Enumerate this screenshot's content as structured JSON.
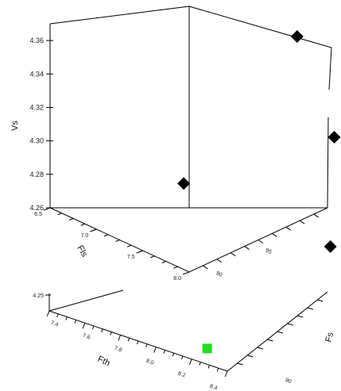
{
  "chart_data": [
    {
      "type": "scatter",
      "title": "",
      "xlabel": "Fls",
      "ylabel": "Vs",
      "zlabel": "",
      "xticks": [
        "6.5",
        "7.0",
        "7.5",
        "8.0"
      ],
      "yticks": [
        "4.26",
        "4.28",
        "4.30",
        "4.32",
        "4.34",
        "4.36"
      ],
      "zticks": [
        "90",
        "95"
      ],
      "xlim": [
        6.5,
        8.0
      ],
      "ylim": [
        4.26,
        4.37
      ],
      "zlim": [
        88,
        102
      ],
      "marker": "diamond",
      "color": "#000000",
      "points": [
        {
          "x": 6.6,
          "y": 4.365,
          "z": 100
        },
        {
          "x": 7.0,
          "y": 4.315,
          "z": 100
        },
        {
          "x": 7.3,
          "y": 4.295,
          "z": 91
        },
        {
          "x": 7.6,
          "y": 4.265,
          "z": 97
        }
      ]
    },
    {
      "type": "scatter",
      "title": "",
      "xlabel": "Fth",
      "ylabel": "",
      "zlabel": "Fs",
      "xticks": [
        "7.4",
        "7.6",
        "7.8",
        "8.0",
        "8.2",
        "8.4"
      ],
      "yticks": [
        "4.25"
      ],
      "zticks": [
        "90"
      ],
      "xlim": [
        7.4,
        8.4
      ],
      "marker": "square",
      "color": "#22dd22",
      "points": [
        {
          "x": 8.3,
          "y": 4.25,
          "z": 94
        }
      ]
    }
  ]
}
